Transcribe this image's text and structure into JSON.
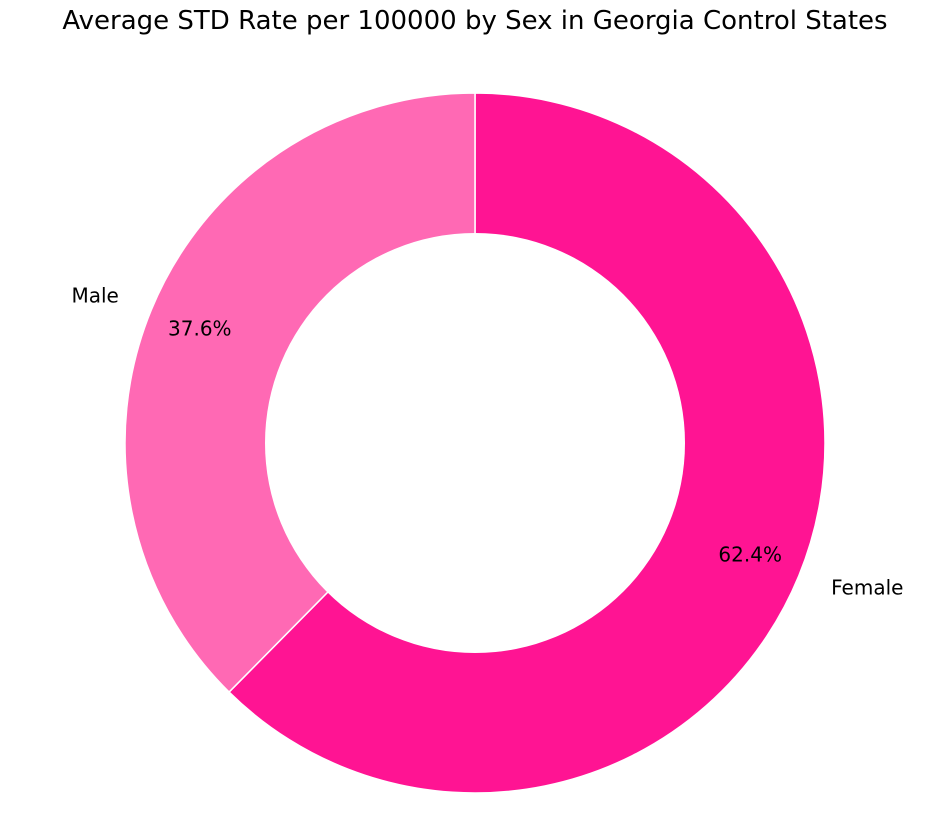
{
  "chart_data": {
    "type": "pie",
    "variant": "donut",
    "title": "Average STD Rate per 100000 by Sex in Georgia Control States",
    "categories": [
      "Female",
      "Male"
    ],
    "values": [
      62.4,
      37.6
    ],
    "value_labels": [
      "62.4%",
      "37.6%"
    ],
    "colors": [
      "#ff1493",
      "#ff69b4"
    ],
    "start_angle_deg": 90,
    "direction": "clockwise",
    "legend": "none"
  }
}
